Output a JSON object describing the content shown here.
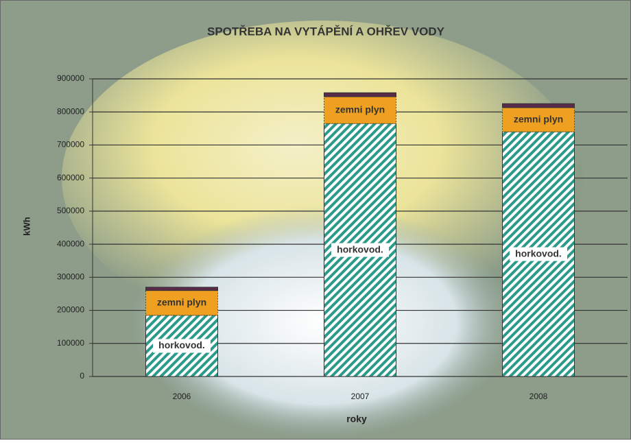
{
  "chart_data": {
    "type": "stacked_bar",
    "title": "SPOTŘEBA NA VYTÁPĚNÍ A OHŘEV VODY",
    "x_label": "roky",
    "y_label": "kWh",
    "categories": [
      "2006",
      "2007",
      "2008"
    ],
    "series": [
      {
        "name": "horkovod.",
        "color": "#2a9a8a",
        "values": [
          185000,
          765000,
          740000
        ]
      },
      {
        "name": "zemni plyn",
        "color": "#f0a020",
        "values": [
          75000,
          81000,
          73000
        ]
      },
      {
        "color": "#5a2a4a",
        "values": [
          10000,
          12000,
          12000
        ]
      }
    ],
    "ylim": [
      0,
      900000
    ],
    "yticks": [
      0,
      100000,
      200000,
      300000,
      400000,
      500000,
      600000,
      700000,
      800000,
      900000
    ],
    "grid": true
  }
}
